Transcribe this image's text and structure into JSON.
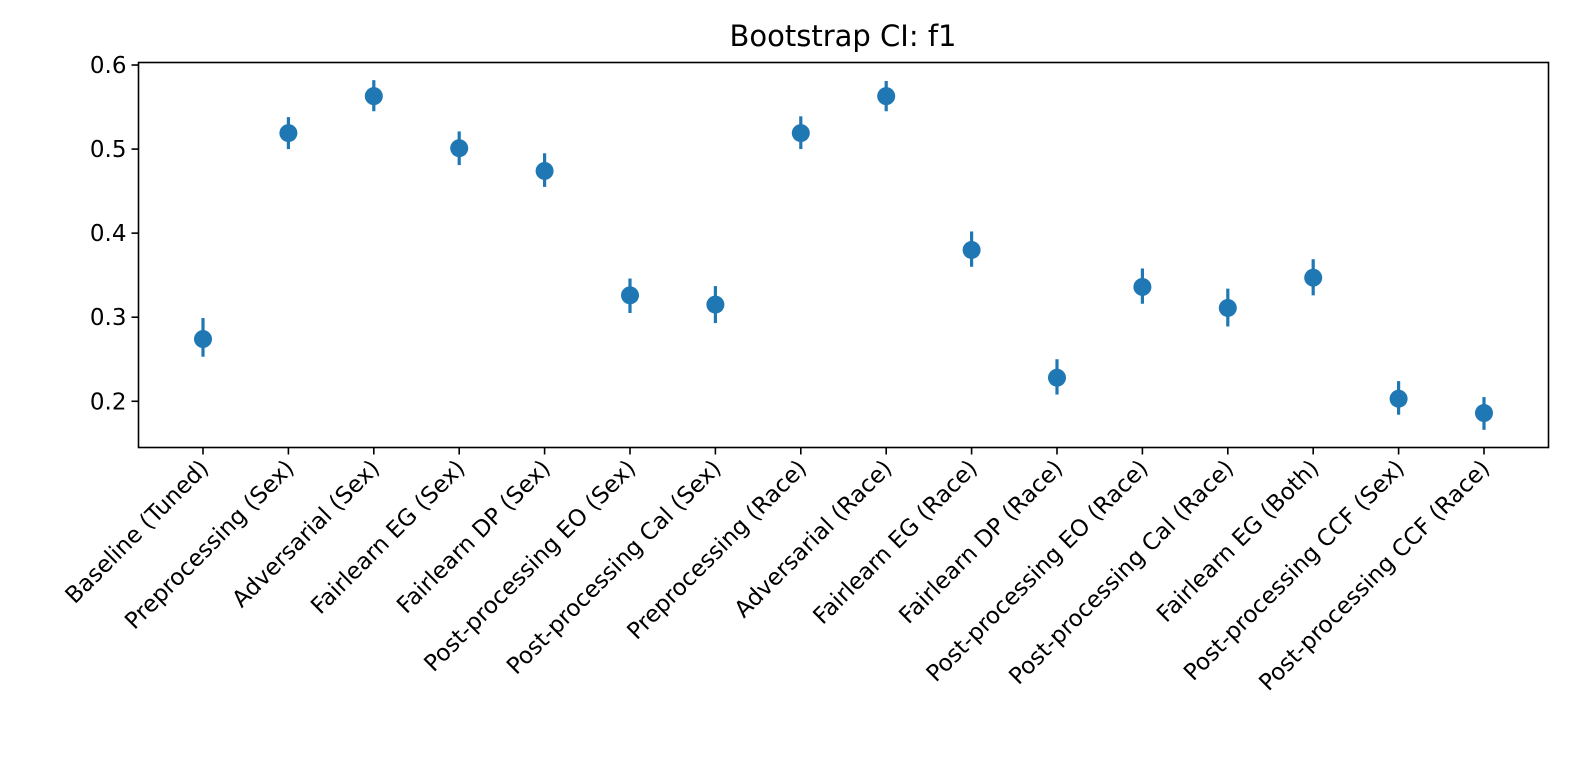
{
  "chart_data": {
    "type": "scatter",
    "title": "Bootstrap CI: f1",
    "xlabel": "",
    "ylabel": "",
    "ylim": [
      0.145,
      0.603
    ],
    "yticks": [
      0.2,
      0.3,
      0.4,
      0.5,
      0.6
    ],
    "ytick_labels": [
      "0.2",
      "0.3",
      "0.4",
      "0.5",
      "0.6"
    ],
    "grid": false,
    "color": "#1f77b4",
    "categories": [
      "Baseline (Tuned)",
      "Preprocessing (Sex)",
      "Adversarial (Sex)",
      "Fairlearn EG (Sex)",
      "Fairlearn DP (Sex)",
      "Post-processing EO (Sex)",
      "Post-processing Cal (Sex)",
      "Preprocessing (Race)",
      "Adversarial (Race)",
      "Fairlearn EG (Race)",
      "Fairlearn DP (Race)",
      "Post-processing EO (Race)",
      "Post-processing Cal (Race)",
      "Fairlearn EG (Both)",
      "Post-processing CCF (Sex)",
      "Post-processing CCF (Race)"
    ],
    "values": [
      0.274,
      0.519,
      0.563,
      0.501,
      0.474,
      0.326,
      0.315,
      0.519,
      0.563,
      0.38,
      0.228,
      0.336,
      0.311,
      0.347,
      0.203,
      0.186
    ],
    "ci_low": [
      0.253,
      0.5,
      0.545,
      0.481,
      0.455,
      0.305,
      0.293,
      0.5,
      0.545,
      0.36,
      0.208,
      0.316,
      0.289,
      0.326,
      0.184,
      0.166
    ],
    "ci_high": [
      0.299,
      0.538,
      0.582,
      0.521,
      0.495,
      0.346,
      0.337,
      0.539,
      0.581,
      0.402,
      0.25,
      0.358,
      0.334,
      0.369,
      0.224,
      0.205
    ]
  }
}
